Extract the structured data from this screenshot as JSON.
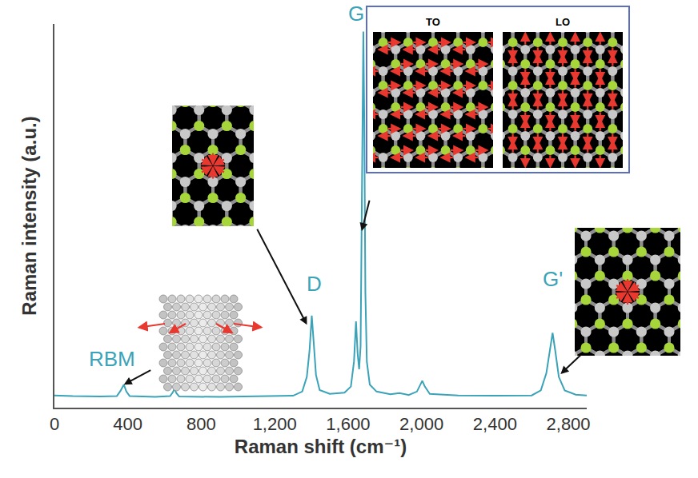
{
  "chart_data": {
    "type": "line",
    "color": "#3ba3b8",
    "xlabel": "Raman shift (cm⁻¹)",
    "ylabel": "Raman intensity (a.u.)",
    "xlim": [
      0,
      2900
    ],
    "ylim": [
      0,
      100
    ],
    "xticks": [
      0,
      400,
      800,
      {
        "value": 1200,
        "label": "1,200"
      },
      {
        "value": 1600,
        "label": "1,600"
      },
      {
        "value": 2000,
        "label": "2,000"
      },
      {
        "value": 2400,
        "label": "2,400"
      },
      {
        "value": 2800,
        "label": "2,800"
      }
    ],
    "tick_labels": "x",
    "grid": false,
    "x": [
      0,
      100,
      250,
      340,
      360,
      378,
      392,
      410,
      550,
      630,
      645,
      654,
      664,
      680,
      900,
      1100,
      1300,
      1350,
      1375,
      1390,
      1402,
      1414,
      1425,
      1445,
      1500,
      1580,
      1615,
      1632,
      1643,
      1652,
      1660,
      1668,
      1674,
      1679,
      1683,
      1688,
      1694,
      1702,
      1718,
      1755,
      1830,
      1880,
      1930,
      1975,
      1993,
      2004,
      2018,
      2045,
      2200,
      2400,
      2600,
      2650,
      2680,
      2698,
      2714,
      2728,
      2748,
      2780,
      2840,
      2900
    ],
    "values": [
      3.2,
      3.0,
      2.9,
      3.0,
      4.4,
      6.0,
      4.2,
      3.0,
      2.8,
      3.0,
      4.0,
      5.0,
      3.8,
      2.9,
      2.8,
      2.9,
      3.1,
      4.2,
      8.0,
      15.0,
      24.0,
      16.0,
      8.5,
      4.6,
      3.6,
      3.9,
      5.5,
      12.0,
      22.5,
      14.0,
      10.0,
      16.0,
      50.0,
      90.0,
      98.0,
      75.0,
      30.0,
      12.0,
      6.0,
      4.2,
      3.5,
      3.8,
      3.3,
      4.2,
      6.0,
      7.0,
      5.5,
      3.6,
      3.2,
      3.1,
      3.2,
      4.5,
      9.0,
      15.0,
      19.5,
      15.0,
      8.0,
      4.5,
      3.4,
      3.2
    ],
    "annotations": [
      {
        "text": "RBM",
        "x": 378
      },
      {
        "text": "D",
        "x": 1402
      },
      {
        "text": "G",
        "x": 1683
      },
      {
        "text": "G'",
        "x": 2714
      }
    ],
    "mode_labels": [
      "TO",
      "LO"
    ]
  }
}
